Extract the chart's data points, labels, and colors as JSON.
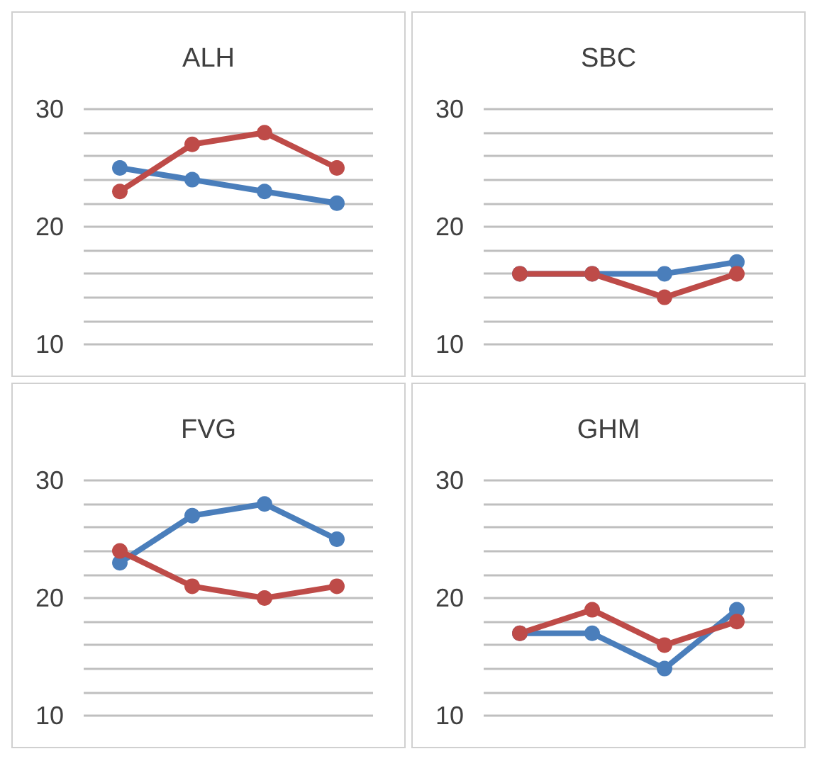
{
  "chart_data": [
    {
      "type": "line",
      "title": "ALH",
      "categories": [
        null,
        null,
        null,
        null
      ],
      "series": [
        {
          "color": "#4a7ebb",
          "values": [
            25,
            24,
            23,
            22
          ]
        },
        {
          "color": "#be4b48",
          "values": [
            23,
            27,
            28,
            25
          ]
        }
      ],
      "ylim": [
        10,
        30
      ],
      "yticks": [
        10,
        {
          "value": 12,
          "label": null
        },
        {
          "value": 14,
          "label": null
        },
        {
          "value": 16,
          "label": null
        },
        {
          "value": 18,
          "label": null
        },
        20,
        {
          "value": 22,
          "label": null
        },
        {
          "value": 24,
          "label": null
        },
        {
          "value": 26,
          "label": null
        },
        {
          "value": 28,
          "label": null
        },
        30
      ],
      "grid": "y",
      "tick_labels": "y",
      "marker": "circle",
      "line_style": "solid"
    },
    {
      "type": "line",
      "title": "SBC",
      "categories": [
        null,
        null,
        null,
        null
      ],
      "series": [
        {
          "color": "#4a7ebb",
          "values": [
            16,
            16,
            16,
            17
          ]
        },
        {
          "color": "#be4b48",
          "values": [
            16,
            16,
            14,
            16
          ]
        }
      ],
      "ylim": [
        10,
        30
      ],
      "yticks": [
        10,
        {
          "value": 12,
          "label": null
        },
        {
          "value": 14,
          "label": null
        },
        {
          "value": 16,
          "label": null
        },
        {
          "value": 18,
          "label": null
        },
        20,
        {
          "value": 22,
          "label": null
        },
        {
          "value": 24,
          "label": null
        },
        {
          "value": 26,
          "label": null
        },
        {
          "value": 28,
          "label": null
        },
        30
      ],
      "grid": "y",
      "tick_labels": "y",
      "marker": "circle",
      "line_style": "solid"
    },
    {
      "type": "line",
      "title": "FVG",
      "categories": [
        null,
        null,
        null,
        null
      ],
      "series": [
        {
          "color": "#4a7ebb",
          "values": [
            23,
            27,
            28,
            25
          ]
        },
        {
          "color": "#be4b48",
          "values": [
            24,
            21,
            20,
            21
          ]
        }
      ],
      "ylim": [
        10,
        30
      ],
      "yticks": [
        10,
        {
          "value": 12,
          "label": null
        },
        {
          "value": 14,
          "label": null
        },
        {
          "value": 16,
          "label": null
        },
        {
          "value": 18,
          "label": null
        },
        20,
        {
          "value": 22,
          "label": null
        },
        {
          "value": 24,
          "label": null
        },
        {
          "value": 26,
          "label": null
        },
        {
          "value": 28,
          "label": null
        },
        30
      ],
      "grid": "y",
      "tick_labels": "y",
      "marker": "circle",
      "line_style": "solid"
    },
    {
      "type": "line",
      "title": "GHM",
      "categories": [
        null,
        null,
        null,
        null
      ],
      "series": [
        {
          "color": "#4a7ebb",
          "values": [
            17,
            17,
            14,
            19
          ]
        },
        {
          "color": "#be4b48",
          "values": [
            17,
            19,
            16,
            18
          ]
        }
      ],
      "ylim": [
        10,
        30
      ],
      "yticks": [
        10,
        {
          "value": 12,
          "label": null
        },
        {
          "value": 14,
          "label": null
        },
        {
          "value": 16,
          "label": null
        },
        {
          "value": 18,
          "label": null
        },
        20,
        {
          "value": 22,
          "label": null
        },
        {
          "value": 24,
          "label": null
        },
        {
          "value": 26,
          "label": null
        },
        {
          "value": 28,
          "label": null
        },
        30
      ],
      "grid": "y",
      "tick_labels": "y",
      "marker": "circle",
      "line_style": "solid"
    }
  ]
}
